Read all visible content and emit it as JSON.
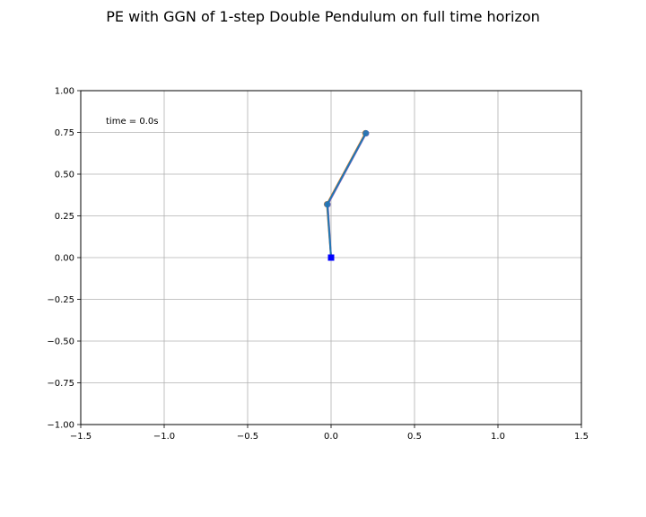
{
  "chart_data": {
    "type": "line",
    "title": "PE with GGN of 1-step Double Pendulum on full time horizon",
    "xlabel": "",
    "ylabel": "",
    "xlim": [
      -1.5,
      1.5
    ],
    "ylim": [
      -1.0,
      1.0
    ],
    "grid": true,
    "x_ticks": [
      -1.5,
      -1.0,
      -0.5,
      0.0,
      0.5,
      1.0,
      1.5
    ],
    "x_tick_labels": [
      "−1.5",
      "−1.0",
      "−0.5",
      "0.0",
      "0.5",
      "1.0",
      "1.5"
    ],
    "y_ticks": [
      1.0,
      0.75,
      0.5,
      0.25,
      0.0,
      -0.25,
      -0.5,
      -0.75,
      -1.0
    ],
    "y_tick_labels": [
      "1.00",
      "0.75",
      "0.50",
      "0.25",
      "0.00",
      "−0.25",
      "−0.50",
      "−0.75",
      "−1.00"
    ],
    "annotation": "time = 0.0s",
    "pivot": {
      "x": 0.0,
      "y": 0.0,
      "color": "#0000ff"
    },
    "series": [
      {
        "color": "#ff7f0e",
        "x": [
          0.0,
          -0.025,
          0.205
        ],
        "y": [
          0.0,
          0.32,
          0.745
        ]
      },
      {
        "color": "#9467bd",
        "x": [
          0.0,
          -0.02,
          0.21
        ],
        "y": [
          0.0,
          0.318,
          0.744
        ]
      },
      {
        "color": "#1f77b4",
        "x": [
          0.0,
          -0.023,
          0.208
        ],
        "y": [
          0.0,
          0.319,
          0.745
        ]
      }
    ]
  }
}
